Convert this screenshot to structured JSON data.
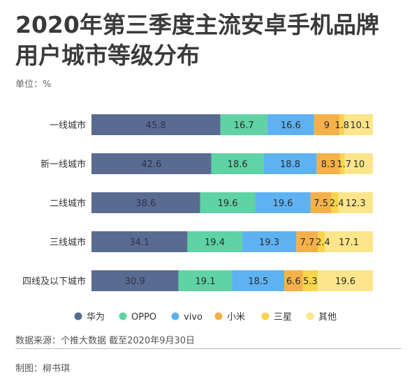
{
  "header": {
    "title_line1": "2020年第三季度主流安卓手机品牌",
    "title_line2": "用户城市等级分布",
    "unit": "单位：%"
  },
  "footer": {
    "source": "数据来源：个推大数据 截至2020年9月30日",
    "author": "制图：柳书琪"
  },
  "chart_data": {
    "type": "bar",
    "orientation": "horizontal",
    "stacked": true,
    "categories": [
      "一线城市",
      "新一线城市",
      "二线城市",
      "三线城市",
      "四线及以下城市"
    ],
    "series": [
      {
        "name": "华为",
        "color": "#5a6b91",
        "values": [
          45.8,
          42.6,
          38.6,
          34.1,
          30.9
        ],
        "labels": [
          "45.8",
          "42.6",
          "38.6",
          "34.1",
          "30.9"
        ]
      },
      {
        "name": "OPPO",
        "color": "#5fd3a4",
        "values": [
          16.7,
          18.6,
          19.6,
          19.4,
          19.1
        ],
        "labels": [
          "16.7",
          "18.6",
          "19.6",
          "19.4",
          "19.1"
        ]
      },
      {
        "name": "vivo",
        "color": "#5eb2f2",
        "values": [
          16.6,
          18.8,
          19.6,
          19.3,
          18.5
        ],
        "labels": [
          "16.6",
          "18.8",
          "19.6",
          "19.3",
          "18.5"
        ]
      },
      {
        "name": "小米",
        "color": "#f5b04a",
        "values": [
          9,
          8.3,
          7.5,
          7.7,
          6.6
        ],
        "labels": [
          "9",
          "8.3",
          "7.5",
          "7.7",
          "6.6"
        ]
      },
      {
        "name": "三星",
        "color": "#fad44a",
        "values": [
          1.8,
          1.7,
          2.4,
          2.4,
          5.3
        ],
        "labels": [
          "1.8",
          "1.7",
          "2.4",
          "2.4",
          "5.3"
        ]
      },
      {
        "name": "其他",
        "color": "#fce58a",
        "values": [
          10.1,
          10,
          12.3,
          17.1,
          19.6
        ],
        "labels": [
          "10.1",
          "10",
          "12.3",
          "17.1",
          "19.6"
        ]
      }
    ],
    "xlim": [
      0,
      100
    ]
  }
}
